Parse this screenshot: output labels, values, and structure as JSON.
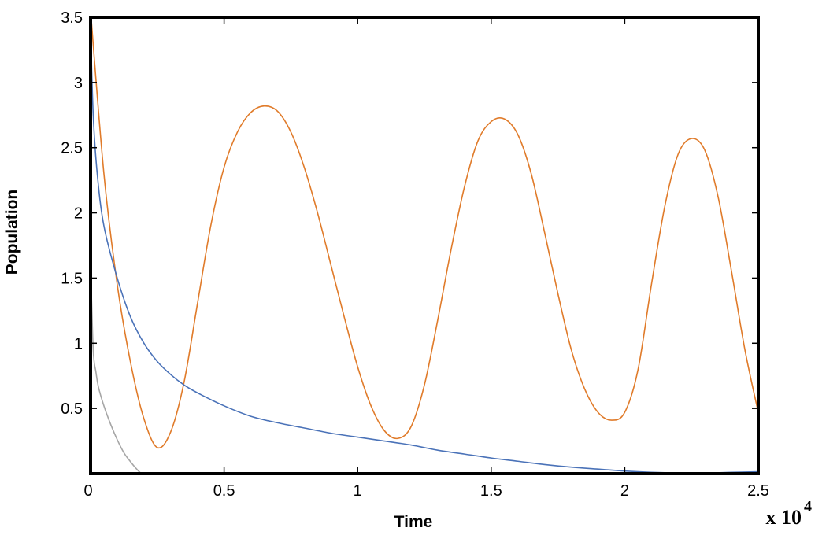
{
  "chart_data": {
    "type": "line",
    "title": "",
    "xlabel": "Time",
    "ylabel": "Population",
    "x_multiplier": {
      "base": "x 10",
      "exponent": "4"
    },
    "xlim": [
      0,
      2.5
    ],
    "ylim": [
      0,
      3.5
    ],
    "x_ticks": [
      {
        "value": 0,
        "label": "0"
      },
      {
        "value": 0.5,
        "label": "0.5"
      },
      {
        "value": 1,
        "label": "1"
      },
      {
        "value": 1.5,
        "label": "1.5"
      },
      {
        "value": 2,
        "label": "2"
      },
      {
        "value": 2.5,
        "label": "2.5"
      }
    ],
    "y_ticks": [
      {
        "value": 0.5,
        "label": "0.5"
      },
      {
        "value": 1,
        "label": "1"
      },
      {
        "value": 1.5,
        "label": "1.5"
      },
      {
        "value": 2,
        "label": "2"
      },
      {
        "value": 2.5,
        "label": "2.5"
      },
      {
        "value": 3,
        "label": "3"
      },
      {
        "value": 3.5,
        "label": "3.5"
      }
    ],
    "grid": false,
    "legend": "none",
    "series": [
      {
        "color": "#e07b2a",
        "points": [
          [
            0,
            3.55
          ],
          [
            0.05,
            2.3
          ],
          [
            0.1,
            1.45
          ],
          [
            0.15,
            0.85
          ],
          [
            0.2,
            0.42
          ],
          [
            0.25,
            0.2
          ],
          [
            0.3,
            0.32
          ],
          [
            0.35,
            0.7
          ],
          [
            0.4,
            1.3
          ],
          [
            0.45,
            1.9
          ],
          [
            0.5,
            2.35
          ],
          [
            0.55,
            2.62
          ],
          [
            0.6,
            2.77
          ],
          [
            0.65,
            2.82
          ],
          [
            0.7,
            2.78
          ],
          [
            0.75,
            2.62
          ],
          [
            0.8,
            2.35
          ],
          [
            0.85,
            2.0
          ],
          [
            0.9,
            1.6
          ],
          [
            0.95,
            1.2
          ],
          [
            1.0,
            0.82
          ],
          [
            1.05,
            0.52
          ],
          [
            1.1,
            0.33
          ],
          [
            1.15,
            0.27
          ],
          [
            1.2,
            0.36
          ],
          [
            1.25,
            0.68
          ],
          [
            1.3,
            1.18
          ],
          [
            1.35,
            1.72
          ],
          [
            1.4,
            2.2
          ],
          [
            1.45,
            2.55
          ],
          [
            1.5,
            2.7
          ],
          [
            1.55,
            2.72
          ],
          [
            1.6,
            2.6
          ],
          [
            1.65,
            2.3
          ],
          [
            1.7,
            1.85
          ],
          [
            1.75,
            1.38
          ],
          [
            1.8,
            0.95
          ],
          [
            1.85,
            0.65
          ],
          [
            1.9,
            0.47
          ],
          [
            1.95,
            0.41
          ],
          [
            2.0,
            0.47
          ],
          [
            2.05,
            0.8
          ],
          [
            2.1,
            1.45
          ],
          [
            2.15,
            2.05
          ],
          [
            2.2,
            2.45
          ],
          [
            2.25,
            2.57
          ],
          [
            2.3,
            2.48
          ],
          [
            2.35,
            2.12
          ],
          [
            2.4,
            1.55
          ],
          [
            2.45,
            0.95
          ],
          [
            2.5,
            0.47
          ]
        ]
      },
      {
        "color": "#4a72b8",
        "points": [
          [
            0,
            3.4
          ],
          [
            0.01,
            2.75
          ],
          [
            0.025,
            2.3
          ],
          [
            0.05,
            1.9
          ],
          [
            0.1,
            1.5
          ],
          [
            0.15,
            1.2
          ],
          [
            0.2,
            1.0
          ],
          [
            0.25,
            0.86
          ],
          [
            0.3,
            0.76
          ],
          [
            0.35,
            0.68
          ],
          [
            0.4,
            0.62
          ],
          [
            0.5,
            0.52
          ],
          [
            0.6,
            0.44
          ],
          [
            0.7,
            0.39
          ],
          [
            0.8,
            0.35
          ],
          [
            0.9,
            0.31
          ],
          [
            1.0,
            0.28
          ],
          [
            1.1,
            0.25
          ],
          [
            1.2,
            0.22
          ],
          [
            1.3,
            0.18
          ],
          [
            1.4,
            0.15
          ],
          [
            1.5,
            0.12
          ],
          [
            1.6,
            0.095
          ],
          [
            1.7,
            0.07
          ],
          [
            1.8,
            0.05
          ],
          [
            1.9,
            0.035
          ],
          [
            2.0,
            0.02
          ],
          [
            2.1,
            0.01
          ],
          [
            2.2,
            0.005
          ],
          [
            2.3,
            0.005
          ],
          [
            2.4,
            0.01
          ],
          [
            2.5,
            0.015
          ]
        ]
      },
      {
        "color": "#a6a6a6",
        "points": [
          [
            0,
            1.6
          ],
          [
            0.01,
            0.95
          ],
          [
            0.02,
            0.78
          ],
          [
            0.03,
            0.66
          ],
          [
            0.05,
            0.52
          ],
          [
            0.075,
            0.38
          ],
          [
            0.1,
            0.26
          ],
          [
            0.125,
            0.16
          ],
          [
            0.15,
            0.09
          ],
          [
            0.175,
            0.03
          ],
          [
            0.19,
            0.0
          ]
        ]
      }
    ]
  }
}
